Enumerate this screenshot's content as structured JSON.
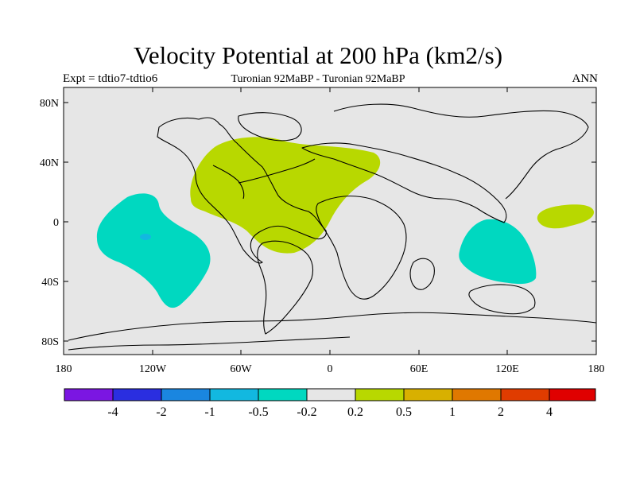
{
  "title": "Velocity Potential at 200 hPa (km2/s)",
  "subtitle_left": "Expt = tdtio7-tdtio6",
  "subtitle_center": "Turonian  92MaBP - Turonian  92MaBP",
  "subtitle_right": "ANN",
  "map": {
    "projection": "cylindrical equidistant",
    "lon_range": [
      -180,
      180
    ],
    "lat_range": [
      -90,
      90
    ],
    "background_color": "#e6e6e6",
    "lat_ticks": [
      "80N",
      "40N",
      "0",
      "40S",
      "80S"
    ],
    "lon_ticks": [
      "180",
      "120W",
      "60W",
      "0",
      "60E",
      "120E",
      "180"
    ]
  },
  "colorbar": {
    "colors": [
      "#7b16e2",
      "#2a2ee0",
      "#1a86e0",
      "#12b8e0",
      "#00d8c0",
      "#e6e6e6",
      "#b8d800",
      "#d8b000",
      "#e07800",
      "#e03c00",
      "#e00000"
    ],
    "labels": [
      "-4",
      "-2",
      "-1",
      "-0.5",
      "-0.2",
      "0.2",
      "0.5",
      "1",
      "2",
      "4"
    ]
  },
  "chart_data": {
    "type": "heatmap",
    "title": "Velocity Potential at 200 hPa (km2/s)",
    "variable": "Velocity Potential at 200 hPa",
    "units": "km2/s",
    "levels": [
      -4,
      -2,
      -1,
      -0.5,
      -0.2,
      0.2,
      0.5,
      1,
      2,
      4
    ],
    "regions": [
      {
        "name": "positive-anomaly-atlantic",
        "level_range": [
          0.2,
          0.5
        ],
        "color": "#b8d800"
      },
      {
        "name": "positive-anomaly-west-pacific",
        "level_range": [
          0.2,
          0.5
        ],
        "color": "#b8d800"
      },
      {
        "name": "negative-anomaly-east-pacific",
        "level_range": [
          -0.5,
          -0.2
        ],
        "color": "#00d8c0"
      },
      {
        "name": "negative-anomaly-east-pacific-core",
        "level_range": [
          -1,
          -0.5
        ],
        "color": "#12b8e0"
      },
      {
        "name": "negative-anomaly-indian-ocean",
        "level_range": [
          -0.5,
          -0.2
        ],
        "color": "#00d8c0"
      }
    ]
  }
}
